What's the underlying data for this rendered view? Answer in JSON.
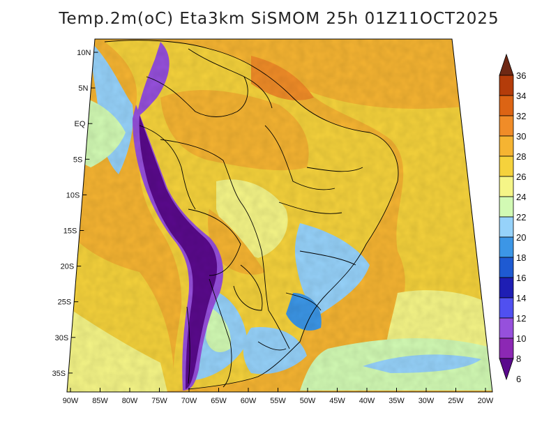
{
  "title": "Temp.2m(oC) Eta3km SiSMOM 25h 01Z11OCT2025",
  "lat_labels": [
    "10N",
    "5N",
    "EQ",
    "5S",
    "10S",
    "15S",
    "20S",
    "25S",
    "30S",
    "35S"
  ],
  "lon_labels": [
    "90W",
    "85W",
    "80W",
    "75W",
    "70W",
    "65W",
    "60W",
    "55W",
    "50W",
    "45W",
    "40W",
    "35W",
    "30W",
    "25W",
    "20W"
  ],
  "colorbar": {
    "labels": [
      "6",
      "8",
      "10",
      "12",
      "14",
      "16",
      "18",
      "20",
      "22",
      "24",
      "26",
      "28",
      "30",
      "32",
      "34",
      "36"
    ],
    "colors": [
      "#5a0a8c",
      "#8c28b4",
      "#9650dc",
      "#5050f0",
      "#1e1eb4",
      "#1e5ad2",
      "#3c96e6",
      "#96d2fa",
      "#d2fab4",
      "#f5f587",
      "#f5d23c",
      "#f5b432",
      "#f08c28",
      "#dc6414",
      "#b43c0a",
      "#6e2814"
    ]
  },
  "palette": {
    "ocean_warm": "#f5b432",
    "ocean_mild": "#f5d23c",
    "ocean_cool": "#f5f587",
    "ocean_cold": "#d2fab4",
    "ocean_coast": "#96d2fa",
    "land_base": "#f5d23c",
    "andes_high": "#5a0a8c",
    "andes_mid": "#9650dc",
    "borders": "#000000"
  }
}
